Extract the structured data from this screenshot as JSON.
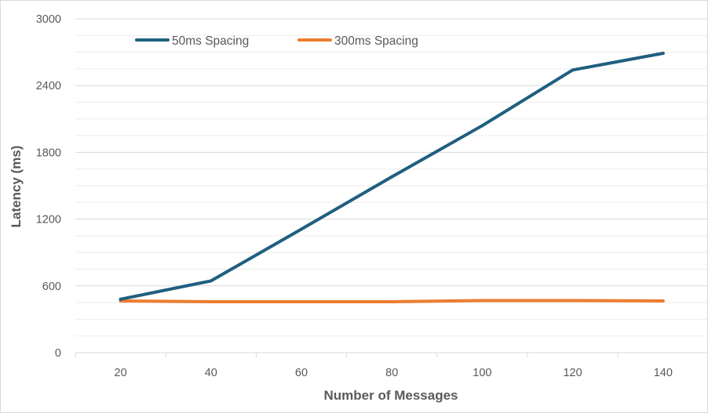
{
  "chart_data": {
    "type": "line",
    "title": "",
    "xlabel": "Number of Messages",
    "ylabel": "Latency (ms)",
    "categories": [
      "20",
      "40",
      "60",
      "80",
      "100",
      "120",
      "140"
    ],
    "x": [
      20,
      40,
      60,
      80,
      100,
      120,
      140
    ],
    "ylim": [
      0,
      3000
    ],
    "yticks": [
      "0",
      "600",
      "1200",
      "1800",
      "2400",
      "3000"
    ],
    "ytick_values": [
      0,
      600,
      1200,
      1800,
      2400,
      3000
    ],
    "grid": "horizontal, minor and major",
    "legend_position": "top-left",
    "series": [
      {
        "name": "50ms Spacing",
        "color": "#1f5f7f",
        "values": [
          480,
          645,
          1110,
          1580,
          2040,
          2540,
          2690
        ]
      },
      {
        "name": "300ms Spacing",
        "color": "#ed7d31",
        "values": [
          465,
          458,
          458,
          458,
          468,
          468,
          465
        ]
      }
    ]
  }
}
